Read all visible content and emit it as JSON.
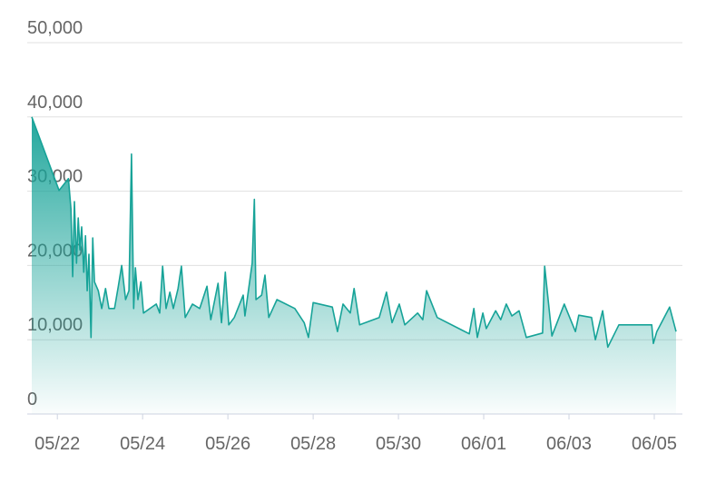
{
  "chart_data": {
    "type": "area",
    "color": "#17a398",
    "grid": true,
    "x": [
      21.4,
      22.04,
      22.26,
      22.32,
      22.36,
      22.4,
      22.45,
      22.49,
      22.53,
      22.57,
      22.62,
      22.66,
      22.7,
      22.74,
      22.79,
      22.83,
      22.87,
      22.96,
      23.04,
      23.13,
      23.21,
      23.34,
      23.43,
      23.51,
      23.6,
      23.68,
      23.74,
      23.79,
      23.83,
      23.89,
      23.96,
      24.02,
      24.32,
      24.4,
      24.47,
      24.55,
      24.64,
      24.72,
      24.83,
      24.91,
      25.0,
      25.17,
      25.34,
      25.51,
      25.6,
      25.77,
      25.85,
      25.94,
      26.02,
      26.15,
      26.36,
      26.4,
      26.57,
      26.62,
      26.66,
      26.79,
      26.87,
      26.96,
      27.15,
      27.57,
      27.79,
      27.89,
      28.0,
      28.45,
      28.57,
      28.7,
      28.87,
      28.96,
      29.09,
      29.55,
      29.72,
      29.85,
      30.02,
      30.15,
      30.45,
      30.57,
      30.66,
      30.91,
      31.66,
      31.77,
      31.85,
      31.98,
      32.06,
      32.28,
      32.4,
      32.53,
      32.66,
      32.83,
      33.0,
      33.38,
      33.43,
      33.6,
      33.89,
      34.15,
      34.23,
      34.53,
      34.62,
      34.79,
      34.91,
      35.17,
      35.94,
      35.98,
      36.06,
      36.36,
      36.51
    ],
    "values": [
      40000,
      30100,
      31700,
      27600,
      18500,
      28600,
      20300,
      26400,
      22100,
      25200,
      19100,
      24000,
      16600,
      21500,
      10300,
      23700,
      17800,
      16600,
      14200,
      16900,
      14200,
      14200,
      17200,
      20000,
      15400,
      16600,
      35000,
      14200,
      19700,
      15400,
      17800,
      13600,
      14800,
      13600,
      19900,
      14200,
      16400,
      14200,
      16900,
      19900,
      13000,
      14800,
      14200,
      17200,
      12700,
      17600,
      12300,
      19100,
      12000,
      13000,
      16000,
      13200,
      20300,
      28900,
      15400,
      16000,
      18700,
      13000,
      15400,
      14200,
      12300,
      10300,
      15000,
      14400,
      11100,
      14800,
      13600,
      16900,
      12000,
      13000,
      16400,
      12300,
      14800,
      12000,
      13600,
      12700,
      16600,
      13000,
      10800,
      14200,
      10300,
      13600,
      11500,
      13900,
      12700,
      14800,
      13200,
      13900,
      10300,
      10900,
      19900,
      10500,
      14800,
      11100,
      13300,
      13000,
      10000,
      13900,
      9000,
      12000,
      12000,
      9500,
      11100,
      14400,
      11100
    ],
    "xlim": [
      21.4,
      36.66
    ],
    "xticks": [
      {
        "value": 22,
        "label": "05/22"
      },
      {
        "value": 24,
        "label": "05/24"
      },
      {
        "value": 26,
        "label": "05/26"
      },
      {
        "value": 28,
        "label": "05/28"
      },
      {
        "value": 30,
        "label": "05/30"
      },
      {
        "value": 32,
        "label": "06/01"
      },
      {
        "value": 34,
        "label": "06/03"
      },
      {
        "value": 36,
        "label": "06/05"
      }
    ],
    "ylim": [
      0,
      50000
    ],
    "yticks": [
      0,
      {
        "value": 10000,
        "label": "10,000"
      },
      {
        "value": 20000,
        "label": "20,000"
      },
      {
        "value": 30000,
        "label": "30,000"
      },
      {
        "value": 40000,
        "label": "40,000"
      },
      {
        "value": 50000,
        "label": "50,000"
      }
    ]
  }
}
